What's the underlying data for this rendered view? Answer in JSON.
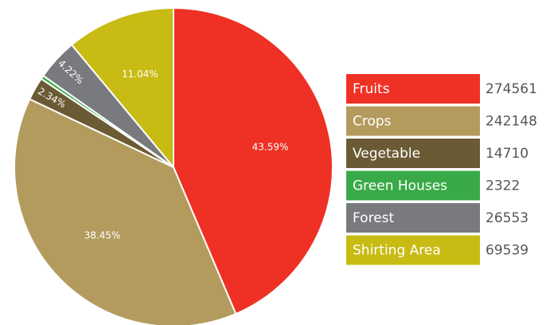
{
  "chart_data": {
    "type": "pie",
    "categories": [
      "Fruits",
      "Crops",
      "Vegetable",
      "Green Houses",
      "Forest",
      "Shirting Area"
    ],
    "values": [
      274561,
      242148,
      14710,
      2322,
      26553,
      69539
    ],
    "percent_labels": [
      "43.59%",
      "38.45%",
      "2.34%",
      "0.37%",
      "4.22%",
      "11.04%"
    ],
    "colors": [
      "#ee3124",
      "#b39b5e",
      "#6b5b34",
      "#3aaa48",
      "#797a7d",
      "#c8bb13"
    ]
  }
}
